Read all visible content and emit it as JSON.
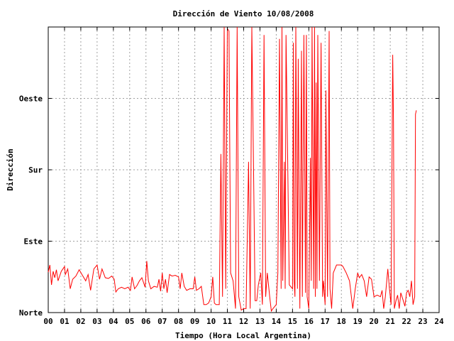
{
  "chart_data": {
    "type": "line",
    "title": "Dirección de Viento 10/08/2008",
    "xlabel": "Tiempo (Hora Local Argentina)",
    "ylabel": "Dirección",
    "x_ticks": [
      "00",
      "01",
      "02",
      "03",
      "04",
      "05",
      "06",
      "07",
      "08",
      "09",
      "10",
      "11",
      "12",
      "13",
      "14",
      "15",
      "16",
      "17",
      "18",
      "19",
      "20",
      "21",
      "22",
      "23",
      "24"
    ],
    "xlim": [
      0,
      24
    ],
    "y_ticks": [
      {
        "value": 0,
        "label": "Norte"
      },
      {
        "value": 90,
        "label": "Este"
      },
      {
        "value": 180,
        "label": "Sur"
      },
      {
        "value": 270,
        "label": "Oeste"
      }
    ],
    "ylim": [
      0,
      360
    ],
    "grid": true,
    "line_color": "#ff0000",
    "series": [
      {
        "values": [
          [
            0.0,
            51
          ],
          [
            0.1,
            60
          ],
          [
            0.2,
            35
          ],
          [
            0.3,
            52
          ],
          [
            0.4,
            44
          ],
          [
            0.5,
            54
          ],
          [
            0.6,
            40
          ],
          [
            0.8,
            52
          ],
          [
            1.0,
            58
          ],
          [
            1.05,
            48
          ],
          [
            1.2,
            55
          ],
          [
            1.35,
            30
          ],
          [
            1.5,
            42
          ],
          [
            1.7,
            46
          ],
          [
            1.9,
            54
          ],
          [
            2.1,
            47
          ],
          [
            2.3,
            40
          ],
          [
            2.45,
            48
          ],
          [
            2.6,
            28
          ],
          [
            2.8,
            55
          ],
          [
            3.0,
            60
          ],
          [
            3.15,
            42
          ],
          [
            3.3,
            55
          ],
          [
            3.5,
            44
          ],
          [
            3.7,
            43
          ],
          [
            3.9,
            46
          ],
          [
            4.05,
            42
          ],
          [
            4.15,
            26
          ],
          [
            4.3,
            30
          ],
          [
            4.5,
            32
          ],
          [
            4.7,
            30
          ],
          [
            4.9,
            32
          ],
          [
            5.05,
            28
          ],
          [
            5.15,
            45
          ],
          [
            5.3,
            30
          ],
          [
            5.45,
            34
          ],
          [
            5.6,
            40
          ],
          [
            5.75,
            44
          ],
          [
            5.95,
            32
          ],
          [
            6.05,
            65
          ],
          [
            6.15,
            40
          ],
          [
            6.3,
            30
          ],
          [
            6.5,
            33
          ],
          [
            6.7,
            32
          ],
          [
            6.8,
            42
          ],
          [
            6.9,
            27
          ],
          [
            7.0,
            50
          ],
          [
            7.1,
            30
          ],
          [
            7.2,
            42
          ],
          [
            7.3,
            25
          ],
          [
            7.45,
            48
          ],
          [
            7.6,
            46
          ],
          [
            7.8,
            47
          ],
          [
            8.0,
            45
          ],
          [
            8.1,
            30
          ],
          [
            8.2,
            50
          ],
          [
            8.35,
            33
          ],
          [
            8.5,
            28
          ],
          [
            8.7,
            30
          ],
          [
            8.9,
            30
          ],
          [
            9.0,
            45
          ],
          [
            9.1,
            28
          ],
          [
            9.25,
            30
          ],
          [
            9.4,
            33
          ],
          [
            9.55,
            10
          ],
          [
            9.7,
            10
          ],
          [
            9.85,
            12
          ],
          [
            10.0,
            20
          ],
          [
            10.1,
            45
          ],
          [
            10.2,
            12
          ],
          [
            10.3,
            10
          ],
          [
            10.5,
            10
          ],
          [
            10.6,
            200
          ],
          [
            10.7,
            20
          ],
          [
            10.8,
            360
          ],
          [
            10.9,
            30
          ],
          [
            11.0,
            358
          ],
          [
            11.1,
            355
          ],
          [
            11.2,
            50
          ],
          [
            11.35,
            40
          ],
          [
            11.5,
            5
          ],
          [
            11.6,
            360
          ],
          [
            11.7,
            20
          ],
          [
            11.85,
            3
          ],
          [
            12.0,
            5
          ],
          [
            12.15,
            5
          ],
          [
            12.3,
            190
          ],
          [
            12.4,
            5
          ],
          [
            12.5,
            360
          ],
          [
            12.6,
            190
          ],
          [
            12.7,
            15
          ],
          [
            12.8,
            15
          ],
          [
            12.9,
            35
          ],
          [
            13.05,
            50
          ],
          [
            13.15,
            10
          ],
          [
            13.25,
            350
          ],
          [
            13.35,
            20
          ],
          [
            13.45,
            50
          ],
          [
            13.6,
            20
          ],
          [
            13.7,
            2
          ],
          [
            13.8,
            5
          ],
          [
            14.0,
            10
          ],
          [
            14.1,
            50
          ],
          [
            14.2,
            345
          ],
          [
            14.3,
            30
          ],
          [
            14.35,
            360
          ],
          [
            14.4,
            40
          ],
          [
            14.5,
            190
          ],
          [
            14.55,
            30
          ],
          [
            14.6,
            350
          ],
          [
            14.7,
            195
          ],
          [
            14.8,
            35
          ],
          [
            15.0,
            30
          ],
          [
            15.05,
            340
          ],
          [
            15.1,
            40
          ],
          [
            15.15,
            20
          ],
          [
            15.2,
            360
          ],
          [
            15.3,
            30
          ],
          [
            15.35,
            320
          ],
          [
            15.45,
            5
          ],
          [
            15.55,
            330
          ],
          [
            15.6,
            20
          ],
          [
            15.7,
            350
          ],
          [
            15.8,
            25
          ],
          [
            15.85,
            350
          ],
          [
            15.9,
            20
          ],
          [
            16.0,
            5
          ],
          [
            16.1,
            195
          ],
          [
            16.15,
            40
          ],
          [
            16.2,
            360
          ],
          [
            16.3,
            30
          ],
          [
            16.35,
            360
          ],
          [
            16.4,
            20
          ],
          [
            16.45,
            290
          ],
          [
            16.5,
            30
          ],
          [
            16.55,
            350
          ],
          [
            16.65,
            40
          ],
          [
            16.75,
            340
          ],
          [
            16.85,
            20
          ],
          [
            16.9,
            40
          ],
          [
            17.0,
            10
          ],
          [
            17.05,
            280
          ],
          [
            17.15,
            20
          ],
          [
            17.25,
            355
          ],
          [
            17.3,
            30
          ],
          [
            17.4,
            5
          ],
          [
            17.5,
            50
          ],
          [
            17.7,
            60
          ],
          [
            18.0,
            60
          ],
          [
            18.1,
            58
          ],
          [
            18.3,
            50
          ],
          [
            18.5,
            40
          ],
          [
            18.7,
            5
          ],
          [
            18.85,
            30
          ],
          [
            19.0,
            50
          ],
          [
            19.1,
            44
          ],
          [
            19.25,
            48
          ],
          [
            19.4,
            40
          ],
          [
            19.55,
            20
          ],
          [
            19.7,
            45
          ],
          [
            19.85,
            42
          ],
          [
            20.0,
            20
          ],
          [
            20.2,
            22
          ],
          [
            20.4,
            20
          ],
          [
            20.5,
            28
          ],
          [
            20.6,
            5
          ],
          [
            20.7,
            20
          ],
          [
            20.85,
            55
          ],
          [
            20.95,
            30
          ],
          [
            21.05,
            10
          ],
          [
            21.15,
            325
          ],
          [
            21.2,
            240
          ],
          [
            21.25,
            5
          ],
          [
            21.35,
            15
          ],
          [
            21.45,
            22
          ],
          [
            21.55,
            5
          ],
          [
            21.65,
            25
          ],
          [
            21.8,
            15
          ],
          [
            21.9,
            8
          ],
          [
            22.0,
            25
          ],
          [
            22.1,
            28
          ],
          [
            22.2,
            20
          ],
          [
            22.3,
            40
          ],
          [
            22.4,
            10
          ],
          [
            22.5,
            20
          ],
          [
            22.55,
            250
          ],
          [
            22.6,
            255
          ]
        ]
      }
    ]
  }
}
